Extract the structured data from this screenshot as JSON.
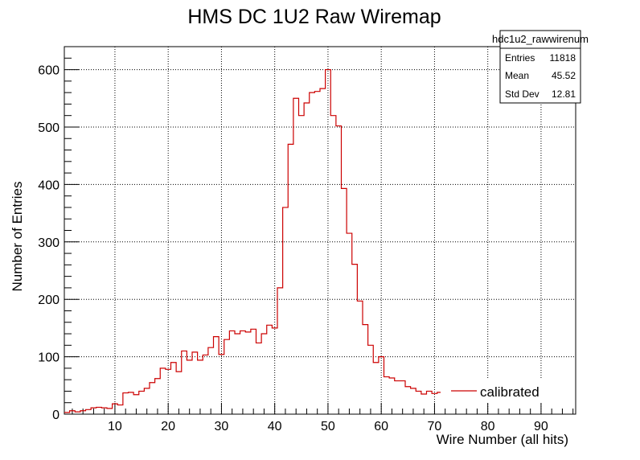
{
  "chart_data": {
    "type": "histogram",
    "title": "HMS DC 1U2 Raw Wiremap",
    "xlabel": "Wire Number (all hits)",
    "ylabel": "Number of Entries",
    "xlim": [
      0.5,
      96.5
    ],
    "ylim": [
      0,
      640
    ],
    "xticks": [
      10,
      20,
      30,
      40,
      50,
      60,
      70,
      80,
      90
    ],
    "yticks": [
      0,
      100,
      200,
      300,
      400,
      500,
      600
    ],
    "grid": true,
    "line_color": "#cc0000",
    "series": [
      {
        "name": "calibrated",
        "bin_width": 1,
        "bin_centers": [
          1,
          2,
          3,
          4,
          5,
          6,
          7,
          8,
          9,
          10,
          11,
          12,
          13,
          14,
          15,
          16,
          17,
          18,
          19,
          20,
          21,
          22,
          23,
          24,
          25,
          26,
          27,
          28,
          29,
          30,
          31,
          32,
          33,
          34,
          35,
          36,
          37,
          38,
          39,
          40,
          41,
          42,
          43,
          44,
          45,
          46,
          47,
          48,
          49,
          50,
          51,
          52,
          53,
          54,
          55,
          56,
          57,
          58,
          59,
          60,
          61,
          62,
          63,
          64,
          65,
          66,
          67,
          68,
          69,
          70,
          71,
          72
        ],
        "values": [
          3,
          6,
          4,
          6,
          8,
          11,
          12,
          11,
          10,
          18,
          16,
          37,
          38,
          34,
          40,
          45,
          55,
          62,
          80,
          78,
          90,
          74,
          110,
          94,
          108,
          94,
          103,
          116,
          135,
          104,
          130,
          145,
          140,
          145,
          143,
          148,
          124,
          140,
          155,
          150,
          220,
          360,
          470,
          550,
          520,
          542,
          560,
          562,
          567,
          600,
          520,
          502,
          393,
          315,
          261,
          197,
          156,
          120,
          90,
          100,
          65,
          63,
          58,
          58,
          48,
          45,
          40,
          35,
          40,
          36,
          38,
          38
        ]
      }
    ],
    "stats_box": {
      "name": "hdc1u2_rawwirenum",
      "rows": [
        {
          "label": "Entries",
          "value": "11818"
        },
        {
          "label": "Mean",
          "value": "45.52"
        },
        {
          "label": "Std Dev",
          "value": "12.81"
        }
      ]
    },
    "legend": {
      "label": "calibrated",
      "position": "lower-right"
    }
  }
}
